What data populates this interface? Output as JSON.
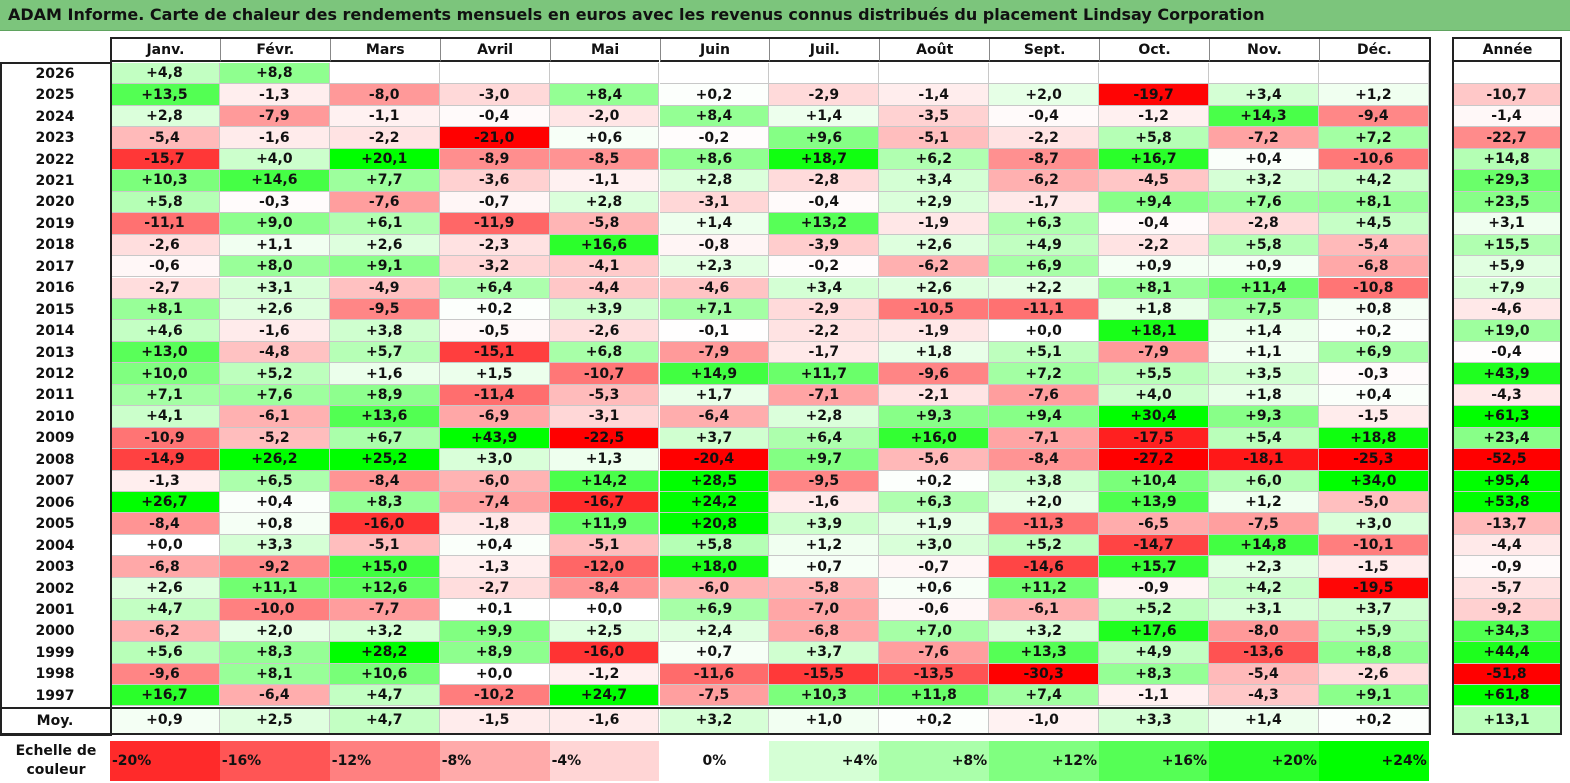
{
  "title": "ADAM Informe. Carte de chaleur des rendements mensuels en euros avec les revenus connus distribués du placement Lindsay Corporation",
  "months": [
    "Janv.",
    "Févr.",
    "Mars",
    "Avril",
    "Mai",
    "Juin",
    "Juil.",
    "Août",
    "Sept.",
    "Oct.",
    "Nov.",
    "Déc."
  ],
  "annual_header": "Année",
  "avg_label": "Moy.",
  "colors": {
    "negative": "#ff0000",
    "neutral": "#ffffff",
    "positive": "#00ff00",
    "title_bg": "#7cc57c"
  },
  "chart_data": {
    "type": "heatmap",
    "title": "ADAM Informe. Carte de chaleur des rendements mensuels en euros avec les revenus connus distribués du placement Lindsay Corporation",
    "columns": [
      "Janv.",
      "Févr.",
      "Mars",
      "Avril",
      "Mai",
      "Juin",
      "Juil.",
      "Août",
      "Sept.",
      "Oct.",
      "Nov.",
      "Déc."
    ],
    "rows": [
      {
        "year": "2026",
        "values": [
          "+4,8",
          "+8,8",
          "",
          "",
          "",
          "",
          "",
          "",
          "",
          "",
          "",
          ""
        ],
        "annual": ""
      },
      {
        "year": "2025",
        "values": [
          "+13,5",
          "-1,3",
          "-8,0",
          "-3,0",
          "+8,4",
          "+0,2",
          "-2,9",
          "-1,4",
          "+2,0",
          "-19,7",
          "+3,4",
          "+1,2"
        ],
        "annual": "-10,7"
      },
      {
        "year": "2024",
        "values": [
          "+2,8",
          "-7,9",
          "-1,1",
          "-0,4",
          "-2,0",
          "+8,4",
          "+1,4",
          "-3,5",
          "-0,4",
          "-1,2",
          "+14,3",
          "-9,4"
        ],
        "annual": "-1,4"
      },
      {
        "year": "2023",
        "values": [
          "-5,4",
          "-1,6",
          "-2,2",
          "-21,0",
          "+0,6",
          "-0,2",
          "+9,6",
          "-5,1",
          "-2,2",
          "+5,8",
          "-7,2",
          "+7,2"
        ],
        "annual": "-22,7"
      },
      {
        "year": "2022",
        "values": [
          "-15,7",
          "+4,0",
          "+20,1",
          "-8,9",
          "-8,5",
          "+8,6",
          "+18,7",
          "+6,2",
          "-8,7",
          "+16,7",
          "+0,4",
          "-10,6"
        ],
        "annual": "+14,8"
      },
      {
        "year": "2021",
        "values": [
          "+10,3",
          "+14,6",
          "+7,7",
          "-3,6",
          "-1,1",
          "+2,8",
          "-2,8",
          "+3,4",
          "-6,2",
          "-4,5",
          "+3,2",
          "+4,2"
        ],
        "annual": "+29,3"
      },
      {
        "year": "2020",
        "values": [
          "+5,8",
          "-0,3",
          "-7,6",
          "-0,7",
          "+2,8",
          "-3,1",
          "-0,4",
          "+2,9",
          "-1,7",
          "+9,4",
          "+7,6",
          "+8,1"
        ],
        "annual": "+23,5"
      },
      {
        "year": "2019",
        "values": [
          "-11,1",
          "+9,0",
          "+6,1",
          "-11,9",
          "-5,8",
          "+1,4",
          "+13,2",
          "-1,9",
          "+6,3",
          "-0,4",
          "-2,8",
          "+4,5"
        ],
        "annual": "+3,1"
      },
      {
        "year": "2018",
        "values": [
          "-2,6",
          "+1,1",
          "+2,6",
          "-2,3",
          "+16,6",
          "-0,8",
          "-3,9",
          "+2,6",
          "+4,9",
          "-2,2",
          "+5,8",
          "-5,4"
        ],
        "annual": "+15,5"
      },
      {
        "year": "2017",
        "values": [
          "-0,6",
          "+8,0",
          "+9,1",
          "-3,2",
          "-4,1",
          "+2,3",
          "-0,2",
          "-6,2",
          "+6,9",
          "+0,9",
          "+0,9",
          "-6,8"
        ],
        "annual": "+5,9"
      },
      {
        "year": "2016",
        "values": [
          "-2,7",
          "+3,1",
          "-4,9",
          "+6,4",
          "-4,4",
          "-4,6",
          "+3,4",
          "+2,6",
          "+2,2",
          "+8,1",
          "+11,4",
          "-10,8"
        ],
        "annual": "+7,9"
      },
      {
        "year": "2015",
        "values": [
          "+8,1",
          "+2,6",
          "-9,5",
          "+0,2",
          "+3,9",
          "+7,1",
          "-2,9",
          "-10,5",
          "-11,1",
          "+1,8",
          "+7,5",
          "+0,8"
        ],
        "annual": "-4,6"
      },
      {
        "year": "2014",
        "values": [
          "+4,6",
          "-1,6",
          "+3,8",
          "-0,5",
          "-2,6",
          "-0,1",
          "-2,2",
          "-1,9",
          "+0,0",
          "+18,1",
          "+1,4",
          "+0,2"
        ],
        "annual": "+19,0"
      },
      {
        "year": "2013",
        "values": [
          "+13,0",
          "-4,8",
          "+5,7",
          "-15,1",
          "+6,8",
          "-7,9",
          "-1,7",
          "+1,8",
          "+5,1",
          "-7,9",
          "+1,1",
          "+6,9"
        ],
        "annual": "-0,4"
      },
      {
        "year": "2012",
        "values": [
          "+10,0",
          "+5,2",
          "+1,6",
          "+1,5",
          "-10,7",
          "+14,9",
          "+11,7",
          "-9,6",
          "+7,2",
          "+5,5",
          "+3,5",
          "-0,3"
        ],
        "annual": "+43,9"
      },
      {
        "year": "2011",
        "values": [
          "+7,1",
          "+7,6",
          "+8,9",
          "-11,4",
          "-5,3",
          "+1,7",
          "-7,1",
          "-2,1",
          "-7,6",
          "+4,0",
          "+1,8",
          "+0,4"
        ],
        "annual": "-4,3"
      },
      {
        "year": "2010",
        "values": [
          "+4,1",
          "-6,1",
          "+13,6",
          "-6,9",
          "-3,1",
          "-6,4",
          "+2,8",
          "+9,3",
          "+9,4",
          "+30,4",
          "+9,3",
          "-1,5"
        ],
        "annual": "+61,3"
      },
      {
        "year": "2009",
        "values": [
          "-10,9",
          "-5,2",
          "+6,7",
          "+43,9",
          "-22,5",
          "+3,7",
          "+6,4",
          "+16,0",
          "-7,1",
          "-17,5",
          "+5,4",
          "+18,8"
        ],
        "annual": "+23,4"
      },
      {
        "year": "2008",
        "values": [
          "-14,9",
          "+26,2",
          "+25,2",
          "+3,0",
          "+1,3",
          "-20,4",
          "+9,7",
          "-5,6",
          "-8,4",
          "-27,2",
          "-18,1",
          "-25,3"
        ],
        "annual": "-52,5"
      },
      {
        "year": "2007",
        "values": [
          "-1,3",
          "+6,5",
          "-8,4",
          "-6,0",
          "+14,2",
          "+28,5",
          "-9,5",
          "+0,2",
          "+3,8",
          "+10,4",
          "+6,0",
          "+34,0"
        ],
        "annual": "+95,4"
      },
      {
        "year": "2006",
        "values": [
          "+26,7",
          "+0,4",
          "+8,3",
          "-7,4",
          "-16,7",
          "+24,2",
          "-1,6",
          "+6,3",
          "+2,0",
          "+13,9",
          "+1,2",
          "-5,0"
        ],
        "annual": "+53,8"
      },
      {
        "year": "2005",
        "values": [
          "-8,4",
          "+0,8",
          "-16,0",
          "-1,8",
          "+11,9",
          "+20,8",
          "+3,9",
          "+1,9",
          "-11,3",
          "-6,5",
          "-7,5",
          "+3,0"
        ],
        "annual": "-13,7"
      },
      {
        "year": "2004",
        "values": [
          "+0,0",
          "+3,3",
          "-5,1",
          "+0,4",
          "-5,1",
          "+5,8",
          "+1,2",
          "+3,0",
          "+5,2",
          "-14,7",
          "+14,8",
          "-10,1"
        ],
        "annual": "-4,4"
      },
      {
        "year": "2003",
        "values": [
          "-6,8",
          "-9,2",
          "+15,0",
          "-1,3",
          "-12,0",
          "+18,0",
          "+0,7",
          "-0,7",
          "-14,6",
          "+15,7",
          "+2,3",
          "-1,5"
        ],
        "annual": "-0,9"
      },
      {
        "year": "2002",
        "values": [
          "+2,6",
          "+11,1",
          "+12,6",
          "-2,7",
          "-8,4",
          "-6,0",
          "-5,8",
          "+0,6",
          "+11,2",
          "-0,9",
          "+4,2",
          "-19,5"
        ],
        "annual": "-5,7"
      },
      {
        "year": "2001",
        "values": [
          "+4,7",
          "-10,0",
          "-7,7",
          "+0,1",
          "+0,0",
          "+6,9",
          "-7,0",
          "-0,6",
          "-6,1",
          "+5,2",
          "+3,1",
          "+3,7"
        ],
        "annual": "-9,2"
      },
      {
        "year": "2000",
        "values": [
          "-6,2",
          "+2,0",
          "+3,2",
          "+9,9",
          "+2,5",
          "+2,4",
          "-6,8",
          "+7,0",
          "+3,2",
          "+17,6",
          "-8,0",
          "+5,9"
        ],
        "annual": "+34,3"
      },
      {
        "year": "1999",
        "values": [
          "+5,6",
          "+8,3",
          "+28,2",
          "+8,9",
          "-16,0",
          "+0,7",
          "+3,7",
          "-7,6",
          "+13,3",
          "+4,9",
          "-13,6",
          "+8,8"
        ],
        "annual": "+44,4"
      },
      {
        "year": "1998",
        "values": [
          "-9,6",
          "+8,1",
          "+10,6",
          "+0,0",
          "-1,2",
          "-11,6",
          "-15,5",
          "-13,5",
          "-30,3",
          "+8,3",
          "-5,4",
          "-2,6"
        ],
        "annual": "-51,8"
      },
      {
        "year": "1997",
        "values": [
          "+16,7",
          "-6,4",
          "+4,7",
          "-10,2",
          "+24,7",
          "-7,5",
          "+10,3",
          "+11,8",
          "+7,4",
          "-1,1",
          "-4,3",
          "+9,1"
        ],
        "annual": "+61,8"
      }
    ],
    "average": {
      "values": [
        "+0,9",
        "+2,5",
        "+4,7",
        "-1,5",
        "-1,6",
        "+3,2",
        "+1,0",
        "+0,2",
        "-1,0",
        "+3,3",
        "+1,4",
        "+0,2"
      ],
      "annual": "+13,1"
    },
    "color_scale": {
      "label": "Echelle de couleur",
      "steps": [
        "-20%",
        "-16%",
        "-12%",
        "-8%",
        "-4%",
        "0%",
        "+4%",
        "+8%",
        "+12%",
        "+16%",
        "+20%",
        "+24%"
      ],
      "values": [
        -20,
        -16,
        -12,
        -8,
        -4,
        0,
        4,
        8,
        12,
        16,
        20,
        24
      ],
      "min": -20,
      "max": 20
    }
  }
}
